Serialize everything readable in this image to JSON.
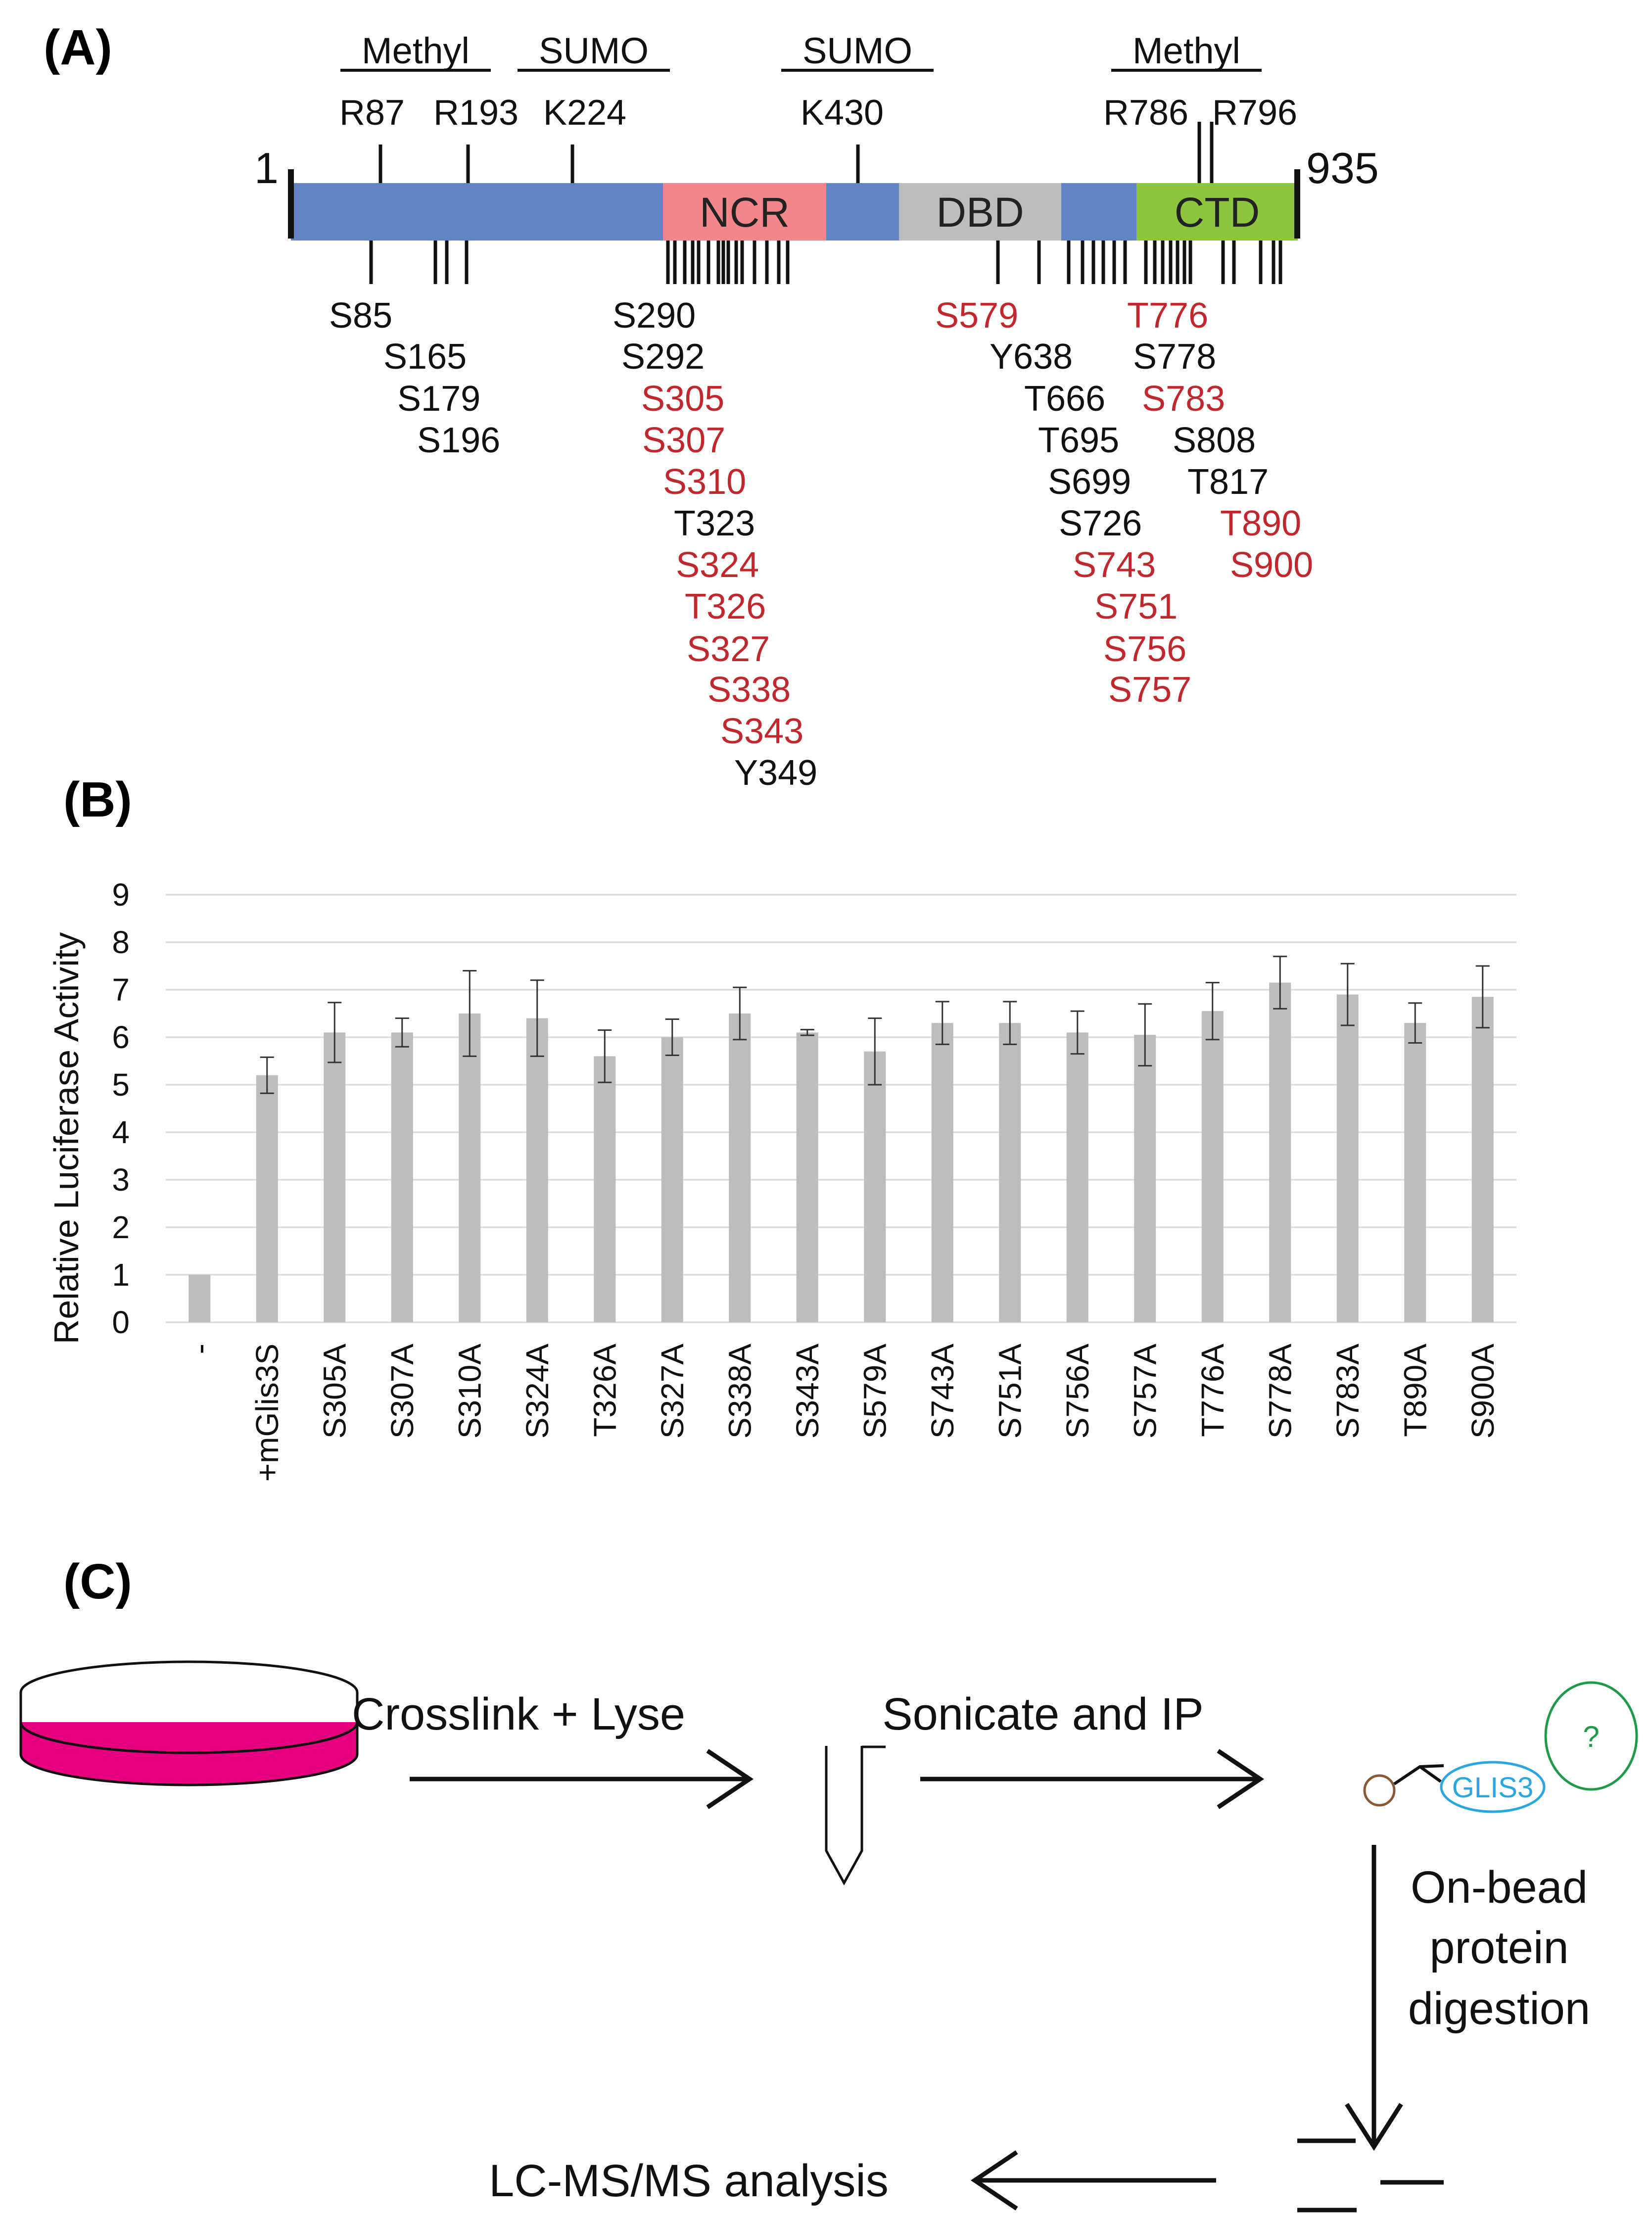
{
  "panels": {
    "a": "(A)",
    "b": "(B)",
    "c": "(C)"
  },
  "colors": {
    "backbone": "#6283c4",
    "ncr": "#f2868a",
    "dbd": "#bdbdbd",
    "ctd": "#8cc63e",
    "red": "#c0282d",
    "black": "#111111",
    "bar": "#bdbdbd",
    "dish": "#e6007e",
    "glis": "#2aa7e0",
    "unknown": "#1f9a4a",
    "bead": "#8a5a36"
  },
  "protein": {
    "start": "1",
    "end": "935",
    "domains": {
      "ncr": "NCR",
      "dbd": "DBD",
      "ctd": "CTD"
    },
    "mod_labels": {
      "methyl_1": "Methyl",
      "sumo_1": "SUMO",
      "sumo_2": "SUMO",
      "methyl_2": "Methyl"
    },
    "top_sites": [
      "R87",
      "R193",
      "K224",
      "K430",
      "R786",
      "R796"
    ],
    "sites_group1": [
      "S85",
      "S165",
      "S179",
      "S196"
    ],
    "sites_group2": [
      "S290",
      "S292",
      "S305",
      "S307",
      "S310",
      "T323",
      "S324",
      "T326",
      "S327",
      "S338",
      "S343",
      "Y349"
    ],
    "sites_group3": [
      "S579",
      "Y638",
      "T666",
      "T695",
      "S699",
      "S726",
      "S743",
      "S751",
      "S756",
      "S757"
    ],
    "sites_group4": [
      "T776",
      "S778",
      "S783",
      "S808",
      "T817",
      "T890",
      "S900"
    ]
  },
  "chart_data": {
    "type": "bar",
    "title": "",
    "xlabel": "",
    "ylabel": "Relative Luciferase Activity",
    "ylim": [
      0,
      9
    ],
    "yticks": [
      "0",
      "1",
      "2",
      "3",
      "4",
      "5",
      "6",
      "7",
      "8",
      "9"
    ],
    "grid": true,
    "categories": [
      "-",
      "+mGlis3S",
      "S305A",
      "S307A",
      "S310A",
      "S324A",
      "T326A",
      "S327A",
      "S338A",
      "S343A",
      "S579A",
      "S743A",
      "S751A",
      "S756A",
      "S757A",
      "T776A",
      "S778A",
      "S783A",
      "T890A",
      "S900A"
    ],
    "values": [
      1.0,
      5.2,
      6.1,
      6.1,
      6.5,
      6.4,
      5.6,
      6.0,
      6.5,
      6.1,
      5.7,
      6.3,
      6.3,
      6.1,
      6.05,
      6.55,
      7.15,
      6.9,
      6.3,
      6.85
    ],
    "errors": [
      0.0,
      0.38,
      0.63,
      0.3,
      0.9,
      0.8,
      0.55,
      0.38,
      0.55,
      0.06,
      0.7,
      0.45,
      0.45,
      0.45,
      0.65,
      0.6,
      0.55,
      0.65,
      0.42,
      0.65
    ]
  },
  "workflow": {
    "step1": "Crosslink + Lyse",
    "step2": "Sonicate and IP",
    "step3_line1": "On-bead",
    "step3_line2": "protein",
    "step3_line3": "digestion",
    "step4": "LC-MS/MS analysis",
    "glis_label": "GLIS3",
    "unknown_label": "?"
  }
}
